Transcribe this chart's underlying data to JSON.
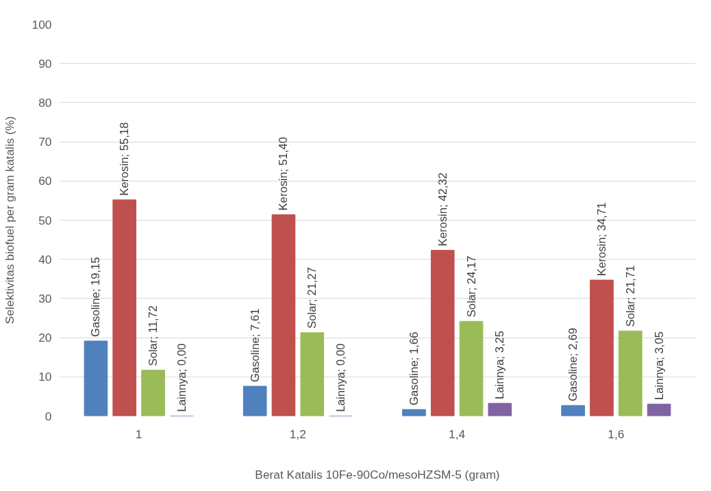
{
  "chart_data": {
    "type": "bar",
    "xlabel": "Berat Katalis 10Fe-90Co/mesoHZSM-5 (gram)",
    "ylabel": "Selektivitas biofuel per gram katalis (%)",
    "categories": [
      "1",
      "1,2",
      "1,4",
      "1,6"
    ],
    "series": [
      {
        "color": "#4f81bd",
        "values": [
          19.15,
          7.61,
          1.66,
          2.69
        ],
        "value_labels": [
          "Gasoline; 19,15",
          "Gasoline; 7,61",
          "Gasoline; 1,66",
          "Gasoline; 2,69"
        ]
      },
      {
        "color": "#c0504d",
        "values": [
          55.18,
          51.4,
          42.32,
          34.71
        ],
        "value_labels": [
          "Kerosin; 55,18",
          "Kerosin; 51,40",
          "Kerosin; 42,32",
          "Kerosin; 34,71"
        ]
      },
      {
        "color": "#9bbb59",
        "values": [
          11.72,
          21.27,
          24.17,
          21.71
        ],
        "value_labels": [
          "Solar; 11,72",
          "Solar; 21,27",
          "Solar; 24,17",
          "Solar; 21,71"
        ]
      },
      {
        "color": "#8064a2",
        "values": [
          0.0,
          0.0,
          3.25,
          3.05
        ],
        "value_labels": [
          "Lainnya; 0,00",
          "Lainnya; 0,00",
          "Lainnya; 3,25",
          "Lainnya; 3,05"
        ]
      }
    ],
    "ylim": [
      0,
      100
    ],
    "yticks": [
      0,
      10,
      20,
      30,
      40,
      50,
      60,
      70,
      80,
      90,
      100
    ],
    "grid": "y"
  }
}
